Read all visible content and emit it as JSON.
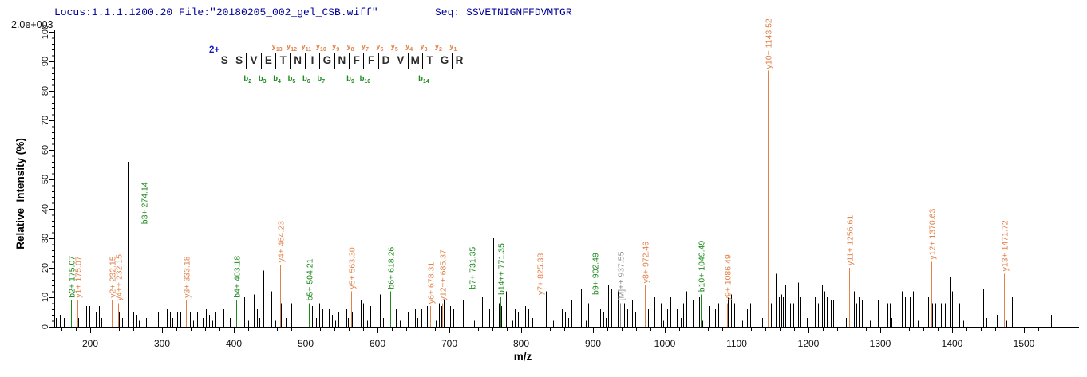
{
  "header": {
    "locus_file": "Locus:1.1.1.1200.20 File:\"20180205_002_gel_CSB.wiff\"",
    "seq_label": "Seq: ",
    "seq_value": "SSVETNIGNFFDVMTGR",
    "intensity_scale": "2.0e+003"
  },
  "peptide": {
    "charge_label": "2+",
    "residues": [
      {
        "aa": "S"
      },
      {
        "aa": "S"
      },
      {
        "aa": "V",
        "b": "b2"
      },
      {
        "aa": "E",
        "b": "b3"
      },
      {
        "aa": "T",
        "y": "y13",
        "b": "b4"
      },
      {
        "aa": "N",
        "y": "y12",
        "b": "b5"
      },
      {
        "aa": "I",
        "y": "y11",
        "b": "b6"
      },
      {
        "aa": "G",
        "y": "y10",
        "b": "b7"
      },
      {
        "aa": "N",
        "y": "y9"
      },
      {
        "aa": "F",
        "y": "y8",
        "b": "b9"
      },
      {
        "aa": "F",
        "y": "y7",
        "b": "b10"
      },
      {
        "aa": "D",
        "y": "y6"
      },
      {
        "aa": "V",
        "y": "y5"
      },
      {
        "aa": "M",
        "y": "y4"
      },
      {
        "aa": "T",
        "y": "y3",
        "b": "b14"
      },
      {
        "aa": "G",
        "y": "y2"
      },
      {
        "aa": "R",
        "y": "y1"
      }
    ]
  },
  "colors": {
    "y_ion": "#e2824a",
    "b_ion": "#1e8a1e",
    "precursor": "#8c8c8c",
    "peak": "#000000",
    "axis": "#000000",
    "header_text": "#000099",
    "charge": "#1515cc"
  },
  "chart_data": {
    "type": "bar",
    "subtype": "tandem-ms-spectrum",
    "title": "",
    "xlabel": "m/z",
    "ylabel": "Relative  Intensity (%)",
    "xlim": [
      150,
      1560
    ],
    "ylim": [
      0,
      100
    ],
    "x_major_ticks": [
      200,
      300,
      400,
      500,
      600,
      700,
      800,
      900,
      1000,
      1100,
      1200,
      1300,
      1400,
      1500
    ],
    "x_minor_step": 20,
    "y_major_ticks": [
      0,
      10,
      20,
      30,
      40,
      50,
      60,
      70,
      80,
      90,
      100
    ],
    "y_minor_step": 2,
    "full_scale_intensity": "2.0e+003",
    "fragment_ions": [
      {
        "label": "b2+ 175.07",
        "mz": 175.07,
        "intensity": 9,
        "series": "b",
        "dx": -2
      },
      {
        "label": "y1+ 175.07",
        "mz": 175.07,
        "intensity": 9,
        "series": "y",
        "dx": 6
      },
      {
        "label": "y2+ 232.15",
        "mz": 232.15,
        "intensity": 9,
        "series": "y",
        "dx": -2
      },
      {
        "label": "y4++ 232.15",
        "mz": 232.15,
        "intensity": 8,
        "series": "y",
        "dx": 6
      },
      {
        "label": "b3+ 274.14",
        "mz": 274.14,
        "intensity": 34,
        "series": "b",
        "dx": 0
      },
      {
        "label": "y3+ 333.18",
        "mz": 333.18,
        "intensity": 9,
        "series": "y",
        "dx": 0
      },
      {
        "label": "b4+ 403.18",
        "mz": 403.18,
        "intensity": 9,
        "series": "b",
        "dx": 0
      },
      {
        "label": "y4+ 464.23",
        "mz": 464.23,
        "intensity": 21,
        "series": "y",
        "dx": 0
      },
      {
        "label": "b5+ 504.21",
        "mz": 504.21,
        "intensity": 8,
        "series": "b",
        "dx": 0
      },
      {
        "label": "y5+ 563.30",
        "mz": 563.3,
        "intensity": 12,
        "series": "y",
        "dx": 0
      },
      {
        "label": "b6+ 618.26",
        "mz": 618.26,
        "intensity": 12,
        "series": "b",
        "dx": 0
      },
      {
        "label": "y6+ 678.31",
        "mz": 678.31,
        "intensity": 7,
        "series": "y",
        "dx": -4
      },
      {
        "label": "y12++ 685.37",
        "mz": 685.37,
        "intensity": 8,
        "series": "y",
        "dx": 4
      },
      {
        "label": "b7+ 731.35",
        "mz": 731.35,
        "intensity": 12,
        "series": "b",
        "dx": 0
      },
      {
        "label": "b14++ 771.35",
        "mz": 771.35,
        "intensity": 10,
        "series": "b",
        "dx": 0
      },
      {
        "label": "y7+ 825.38",
        "mz": 825.38,
        "intensity": 10,
        "series": "y",
        "dx": 0
      },
      {
        "label": "b9+ 902.49",
        "mz": 902.49,
        "intensity": 10,
        "series": "b",
        "dx": 0
      },
      {
        "label": "[M]++ 937.55",
        "mz": 937.55,
        "intensity": 8,
        "series": "precursor",
        "dx": 0
      },
      {
        "label": "y8+ 972.46",
        "mz": 972.46,
        "intensity": 14,
        "series": "y",
        "dx": 0
      },
      {
        "label": "b10+ 1049.49",
        "mz": 1049.49,
        "intensity": 11,
        "series": "b",
        "dx": 0
      },
      {
        "label": "y9+ 1086.49",
        "mz": 1086.49,
        "intensity": 8,
        "series": "y",
        "dx": 0
      },
      {
        "label": "y10+ 1143.52",
        "mz": 1143.52,
        "intensity": 100,
        "series": "y",
        "dx": 0
      },
      {
        "label": "y11+ 1256.61",
        "mz": 1256.61,
        "intensity": 20,
        "series": "y",
        "dx": 0
      },
      {
        "label": "y12+ 1370.63",
        "mz": 1370.63,
        "intensity": 22,
        "series": "y",
        "dx": 0
      },
      {
        "label": "y13+ 1471.72",
        "mz": 1471.72,
        "intensity": 18,
        "series": "y",
        "dx": 0
      }
    ],
    "peaks": [
      [
        152,
        3
      ],
      [
        158,
        4
      ],
      [
        163,
        3
      ],
      [
        183,
        3
      ],
      [
        194,
        7
      ],
      [
        199,
        7
      ],
      [
        203,
        6
      ],
      [
        208,
        5
      ],
      [
        212,
        7
      ],
      [
        216,
        3
      ],
      [
        220,
        8
      ],
      [
        226,
        8
      ],
      [
        237,
        9
      ],
      [
        240,
        5
      ],
      [
        244,
        3
      ],
      [
        253,
        56
      ],
      [
        260,
        5
      ],
      [
        264,
        4
      ],
      [
        268,
        2
      ],
      [
        278,
        3
      ],
      [
        286,
        4
      ],
      [
        294,
        5
      ],
      [
        297,
        2
      ],
      [
        302,
        10
      ],
      [
        307,
        6
      ],
      [
        311,
        5
      ],
      [
        314,
        3
      ],
      [
        321,
        5
      ],
      [
        326,
        5
      ],
      [
        336,
        6
      ],
      [
        339,
        5
      ],
      [
        343,
        2
      ],
      [
        349,
        5
      ],
      [
        357,
        3
      ],
      [
        361,
        6
      ],
      [
        366,
        4
      ],
      [
        370,
        2
      ],
      [
        374,
        5
      ],
      [
        386,
        6
      ],
      [
        390,
        5
      ],
      [
        394,
        3
      ],
      [
        414,
        10
      ],
      [
        420,
        2
      ],
      [
        428,
        11
      ],
      [
        432,
        6
      ],
      [
        436,
        3
      ],
      [
        441,
        19
      ],
      [
        452,
        12
      ],
      [
        458,
        2
      ],
      [
        466,
        8
      ],
      [
        472,
        3
      ],
      [
        480,
        8
      ],
      [
        489,
        6
      ],
      [
        494,
        2
      ],
      [
        509,
        7
      ],
      [
        514,
        3
      ],
      [
        519,
        8
      ],
      [
        523,
        6
      ],
      [
        528,
        5
      ],
      [
        532,
        6
      ],
      [
        537,
        4
      ],
      [
        541,
        2
      ],
      [
        546,
        5
      ],
      [
        550,
        4
      ],
      [
        557,
        6
      ],
      [
        559,
        3
      ],
      [
        564,
        5
      ],
      [
        572,
        8
      ],
      [
        577,
        9
      ],
      [
        580,
        8
      ],
      [
        586,
        2
      ],
      [
        590,
        7
      ],
      [
        594,
        5
      ],
      [
        603,
        11
      ],
      [
        608,
        3
      ],
      [
        621,
        8
      ],
      [
        626,
        6
      ],
      [
        631,
        2
      ],
      [
        638,
        4
      ],
      [
        642,
        5
      ],
      [
        652,
        6
      ],
      [
        656,
        3
      ],
      [
        661,
        6
      ],
      [
        666,
        7
      ],
      [
        669,
        7
      ],
      [
        673,
        6
      ],
      [
        681,
        2
      ],
      [
        686,
        8
      ],
      [
        689,
        7
      ],
      [
        692,
        9
      ],
      [
        701,
        7
      ],
      [
        706,
        6
      ],
      [
        710,
        3
      ],
      [
        714,
        6
      ],
      [
        719,
        9
      ],
      [
        734,
        2
      ],
      [
        737,
        7
      ],
      [
        746,
        10
      ],
      [
        756,
        6
      ],
      [
        761,
        30
      ],
      [
        769,
        8
      ],
      [
        772,
        7
      ],
      [
        779,
        12
      ],
      [
        788,
        2
      ],
      [
        791,
        6
      ],
      [
        796,
        5
      ],
      [
        806,
        7
      ],
      [
        810,
        6
      ],
      [
        815,
        3
      ],
      [
        826,
        8
      ],
      [
        830,
        15
      ],
      [
        834,
        12
      ],
      [
        841,
        6
      ],
      [
        844,
        2
      ],
      [
        852,
        8
      ],
      [
        857,
        6
      ],
      [
        861,
        5
      ],
      [
        866,
        3
      ],
      [
        870,
        9
      ],
      [
        874,
        6
      ],
      [
        883,
        13
      ],
      [
        890,
        2
      ],
      [
        893,
        8
      ],
      [
        910,
        6
      ],
      [
        914,
        5
      ],
      [
        918,
        3
      ],
      [
        921,
        14
      ],
      [
        926,
        13
      ],
      [
        934,
        12
      ],
      [
        943,
        8
      ],
      [
        948,
        6
      ],
      [
        954,
        9
      ],
      [
        959,
        5
      ],
      [
        968,
        3
      ],
      [
        977,
        6
      ],
      [
        986,
        10
      ],
      [
        990,
        12
      ],
      [
        994,
        8
      ],
      [
        998,
        2
      ],
      [
        1003,
        6
      ],
      [
        1008,
        10
      ],
      [
        1017,
        6
      ],
      [
        1022,
        3
      ],
      [
        1026,
        8
      ],
      [
        1030,
        12
      ],
      [
        1039,
        9
      ],
      [
        1048,
        10
      ],
      [
        1052,
        2
      ],
      [
        1057,
        8
      ],
      [
        1061,
        7
      ],
      [
        1070,
        6
      ],
      [
        1074,
        8
      ],
      [
        1078,
        3
      ],
      [
        1088,
        10
      ],
      [
        1092,
        11
      ],
      [
        1097,
        8
      ],
      [
        1106,
        12
      ],
      [
        1108,
        2
      ],
      [
        1114,
        6
      ],
      [
        1119,
        8
      ],
      [
        1128,
        7
      ],
      [
        1136,
        3
      ],
      [
        1139,
        22
      ],
      [
        1148,
        8
      ],
      [
        1154,
        18
      ],
      [
        1159,
        10
      ],
      [
        1162,
        11
      ],
      [
        1164,
        10
      ],
      [
        1168,
        14
      ],
      [
        1174,
        8
      ],
      [
        1179,
        8
      ],
      [
        1186,
        15
      ],
      [
        1189,
        10
      ],
      [
        1198,
        3
      ],
      [
        1209,
        10
      ],
      [
        1213,
        8
      ],
      [
        1219,
        14
      ],
      [
        1222,
        12
      ],
      [
        1226,
        10
      ],
      [
        1231,
        9
      ],
      [
        1234,
        9
      ],
      [
        1252,
        3
      ],
      [
        1263,
        12
      ],
      [
        1267,
        8
      ],
      [
        1270,
        10
      ],
      [
        1274,
        9
      ],
      [
        1286,
        2
      ],
      [
        1297,
        9
      ],
      [
        1310,
        8
      ],
      [
        1313,
        8
      ],
      [
        1316,
        3
      ],
      [
        1326,
        6
      ],
      [
        1330,
        12
      ],
      [
        1334,
        10
      ],
      [
        1341,
        10
      ],
      [
        1346,
        12
      ],
      [
        1352,
        2
      ],
      [
        1367,
        10
      ],
      [
        1372,
        8
      ],
      [
        1377,
        8
      ],
      [
        1381,
        9
      ],
      [
        1384,
        8
      ],
      [
        1390,
        8
      ],
      [
        1397,
        17
      ],
      [
        1400,
        12
      ],
      [
        1410,
        8
      ],
      [
        1413,
        8
      ],
      [
        1416,
        2
      ],
      [
        1424,
        15
      ],
      [
        1443,
        13
      ],
      [
        1448,
        3
      ],
      [
        1462,
        4
      ],
      [
        1476,
        2
      ],
      [
        1483,
        10
      ],
      [
        1497,
        8
      ],
      [
        1508,
        3
      ],
      [
        1524,
        7
      ],
      [
        1538,
        4
      ]
    ]
  }
}
